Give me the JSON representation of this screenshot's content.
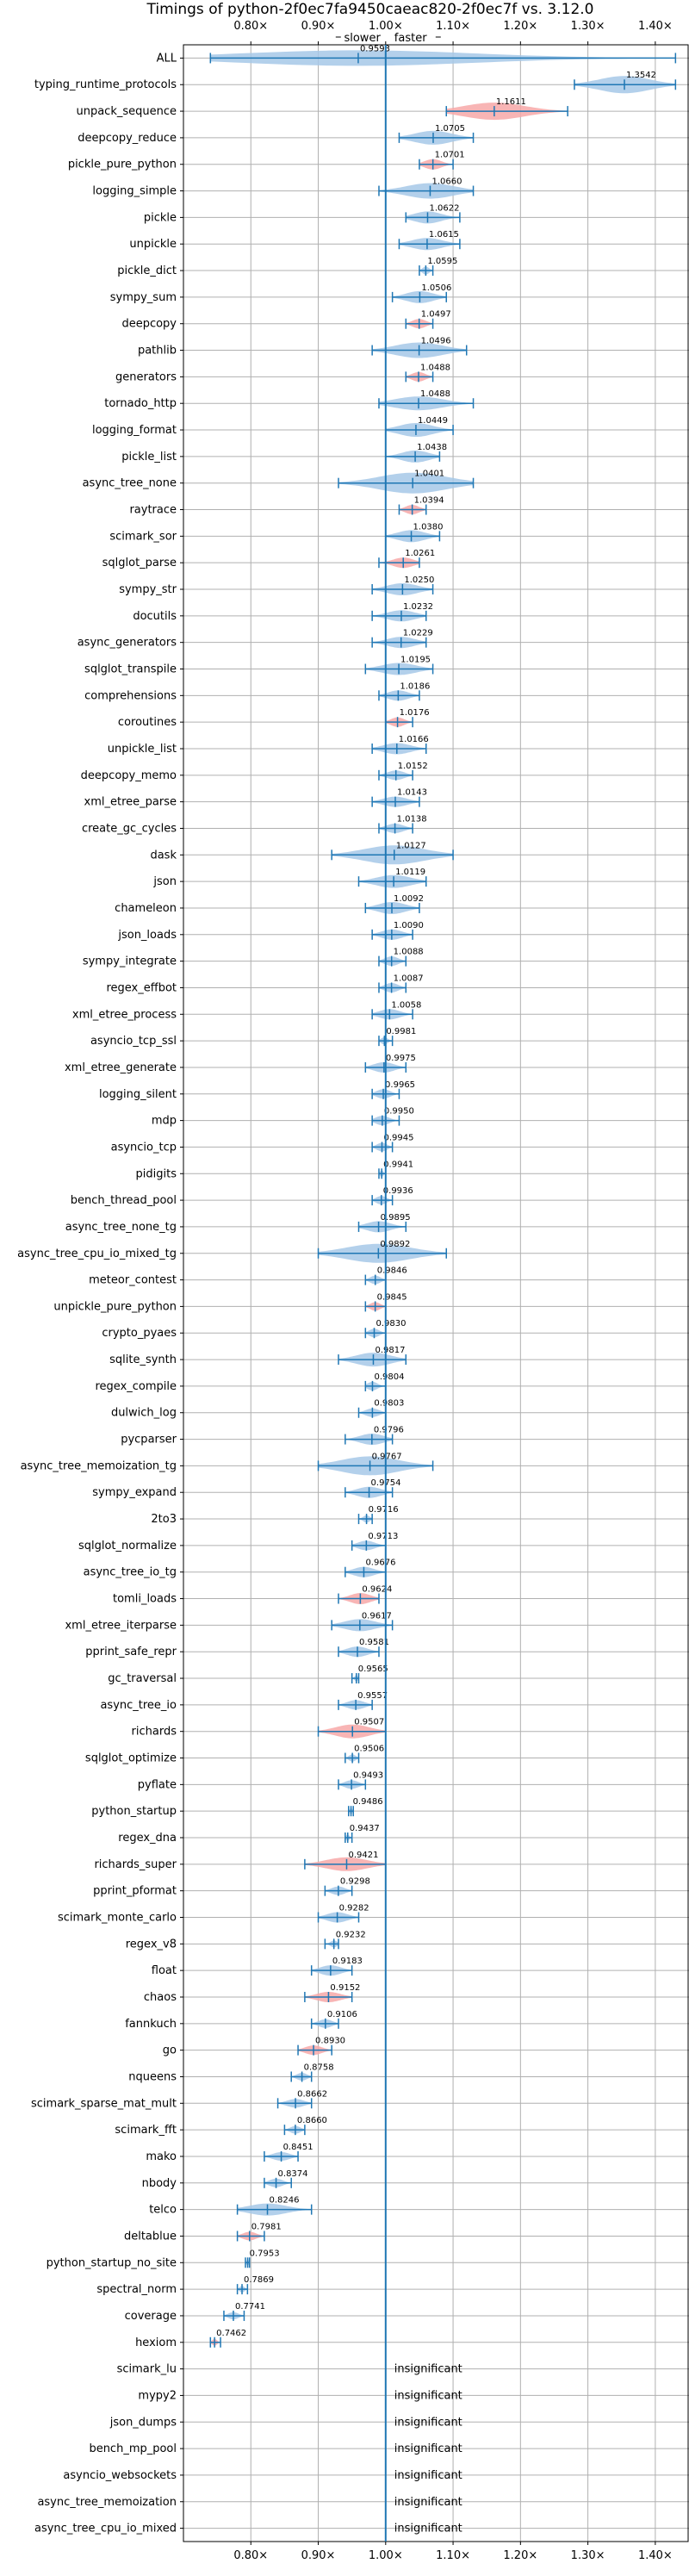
{
  "chart_data": {
    "type": "violin",
    "title": "Timings of python-2f0ec7fa9450caeac820-2f0ec7f vs. 3.12.0",
    "direction_labels": {
      "slower": "slower",
      "faster": "faster"
    },
    "x_ticks": [
      0.8,
      0.9,
      1.0,
      1.1,
      1.2,
      1.3,
      1.4
    ],
    "x_tick_labels": [
      "0.80×",
      "0.90×",
      "1.00×",
      "1.10×",
      "1.20×",
      "1.30×",
      "1.40×"
    ],
    "xlim": [
      0.7,
      1.45
    ],
    "reference_line": 1.0,
    "grid": true,
    "insignificant_text": "insignificant",
    "colors": {
      "normal": "#a6c8e8",
      "highlight": "#f7a8a8",
      "line": "#1f77b4",
      "grid": "#b0b0b0"
    },
    "rows": [
      {
        "name": "ALL",
        "value": 0.9593,
        "label": "0.9593",
        "lo": 0.74,
        "hi": 1.43,
        "w": 0.06,
        "hl": false
      },
      {
        "name": "typing_runtime_protocols",
        "value": 1.3542,
        "label": "1.3542",
        "lo": 1.28,
        "hi": 1.43,
        "w": 0.07,
        "hl": false
      },
      {
        "name": "unpack_sequence",
        "value": 1.1611,
        "label": "1.1611",
        "lo": 1.09,
        "hi": 1.27,
        "w": 0.07,
        "hl": true
      },
      {
        "name": "deepcopy_reduce",
        "value": 1.0705,
        "label": "1.0705",
        "lo": 1.02,
        "hi": 1.13,
        "w": 0.05,
        "hl": false
      },
      {
        "name": "pickle_pure_python",
        "value": 1.0701,
        "label": "1.0701",
        "lo": 1.05,
        "hi": 1.1,
        "w": 0.03,
        "hl": true
      },
      {
        "name": "logging_simple",
        "value": 1.066,
        "label": "1.0660",
        "lo": 0.99,
        "hi": 1.13,
        "w": 0.06,
        "hl": false
      },
      {
        "name": "pickle",
        "value": 1.0622,
        "label": "1.0622",
        "lo": 1.03,
        "hi": 1.11,
        "w": 0.04,
        "hl": false
      },
      {
        "name": "unpickle",
        "value": 1.0615,
        "label": "1.0615",
        "lo": 1.02,
        "hi": 1.11,
        "w": 0.04,
        "hl": false
      },
      {
        "name": "pickle_dict",
        "value": 1.0595,
        "label": "1.0595",
        "lo": 1.05,
        "hi": 1.07,
        "w": 0.015,
        "hl": false
      },
      {
        "name": "sympy_sum",
        "value": 1.0506,
        "label": "1.0506",
        "lo": 1.01,
        "hi": 1.09,
        "w": 0.04,
        "hl": false
      },
      {
        "name": "deepcopy",
        "value": 1.0497,
        "label": "1.0497",
        "lo": 1.03,
        "hi": 1.07,
        "w": 0.025,
        "hl": true
      },
      {
        "name": "pathlib",
        "value": 1.0496,
        "label": "1.0496",
        "lo": 0.98,
        "hi": 1.12,
        "w": 0.06,
        "hl": false
      },
      {
        "name": "generators",
        "value": 1.0488,
        "label": "1.0488",
        "lo": 1.03,
        "hi": 1.07,
        "w": 0.025,
        "hl": true
      },
      {
        "name": "tornado_http",
        "value": 1.0488,
        "label": "1.0488",
        "lo": 0.99,
        "hi": 1.13,
        "w": 0.05,
        "hl": false
      },
      {
        "name": "logging_format",
        "value": 1.0449,
        "label": "1.0449",
        "lo": 1.0,
        "hi": 1.1,
        "w": 0.05,
        "hl": false
      },
      {
        "name": "pickle_list",
        "value": 1.0438,
        "label": "1.0438",
        "lo": 1.0,
        "hi": 1.08,
        "w": 0.04,
        "hl": false
      },
      {
        "name": "async_tree_none",
        "value": 1.0401,
        "label": "1.0401",
        "lo": 0.93,
        "hi": 1.13,
        "w": 0.09,
        "hl": false
      },
      {
        "name": "raytrace",
        "value": 1.0394,
        "label": "1.0394",
        "lo": 1.02,
        "hi": 1.06,
        "w": 0.025,
        "hl": true
      },
      {
        "name": "scimark_sor",
        "value": 1.038,
        "label": "1.0380",
        "lo": 1.0,
        "hi": 1.08,
        "w": 0.04,
        "hl": false
      },
      {
        "name": "sqlglot_parse",
        "value": 1.0261,
        "label": "1.0261",
        "lo": 0.99,
        "hi": 1.05,
        "w": 0.03,
        "hl": true
      },
      {
        "name": "sympy_str",
        "value": 1.025,
        "label": "1.0250",
        "lo": 0.98,
        "hi": 1.07,
        "w": 0.04,
        "hl": false
      },
      {
        "name": "docutils",
        "value": 1.0232,
        "label": "1.0232",
        "lo": 0.98,
        "hi": 1.06,
        "w": 0.035,
        "hl": false
      },
      {
        "name": "async_generators",
        "value": 1.0229,
        "label": "1.0229",
        "lo": 0.98,
        "hi": 1.06,
        "w": 0.035,
        "hl": false
      },
      {
        "name": "sqlglot_transpile",
        "value": 1.0195,
        "label": "1.0195",
        "lo": 0.97,
        "hi": 1.07,
        "w": 0.04,
        "hl": false
      },
      {
        "name": "comprehensions",
        "value": 1.0186,
        "label": "1.0186",
        "lo": 0.99,
        "hi": 1.05,
        "w": 0.03,
        "hl": false
      },
      {
        "name": "coroutines",
        "value": 1.0176,
        "label": "1.0176",
        "lo": 1.0,
        "hi": 1.04,
        "w": 0.025,
        "hl": true
      },
      {
        "name": "unpickle_list",
        "value": 1.0166,
        "label": "1.0166",
        "lo": 0.98,
        "hi": 1.06,
        "w": 0.035,
        "hl": false
      },
      {
        "name": "deepcopy_memo",
        "value": 1.0152,
        "label": "1.0152",
        "lo": 0.99,
        "hi": 1.04,
        "w": 0.025,
        "hl": false
      },
      {
        "name": "xml_etree_parse",
        "value": 1.0143,
        "label": "1.0143",
        "lo": 0.98,
        "hi": 1.05,
        "w": 0.03,
        "hl": false
      },
      {
        "name": "create_gc_cycles",
        "value": 1.0138,
        "label": "1.0138",
        "lo": 0.99,
        "hi": 1.04,
        "w": 0.025,
        "hl": false
      },
      {
        "name": "dask",
        "value": 1.0127,
        "label": "1.0127",
        "lo": 0.92,
        "hi": 1.1,
        "w": 0.08,
        "hl": false
      },
      {
        "name": "json",
        "value": 1.0119,
        "label": "1.0119",
        "lo": 0.96,
        "hi": 1.06,
        "w": 0.045,
        "hl": false
      },
      {
        "name": "chameleon",
        "value": 1.0092,
        "label": "1.0092",
        "lo": 0.97,
        "hi": 1.05,
        "w": 0.04,
        "hl": false
      },
      {
        "name": "json_loads",
        "value": 1.009,
        "label": "1.0090",
        "lo": 0.98,
        "hi": 1.04,
        "w": 0.03,
        "hl": false
      },
      {
        "name": "sympy_integrate",
        "value": 1.0088,
        "label": "1.0088",
        "lo": 0.99,
        "hi": 1.03,
        "w": 0.025,
        "hl": false
      },
      {
        "name": "regex_effbot",
        "value": 1.0087,
        "label": "1.0087",
        "lo": 0.99,
        "hi": 1.03,
        "w": 0.025,
        "hl": false
      },
      {
        "name": "xml_etree_process",
        "value": 1.0058,
        "label": "1.0058",
        "lo": 0.98,
        "hi": 1.04,
        "w": 0.03,
        "hl": false
      },
      {
        "name": "asyncio_tcp_ssl",
        "value": 0.9981,
        "label": "0.9981",
        "lo": 0.99,
        "hi": 1.01,
        "w": 0.012,
        "hl": false
      },
      {
        "name": "xml_etree_generate",
        "value": 0.9975,
        "label": "0.9975",
        "lo": 0.97,
        "hi": 1.03,
        "w": 0.03,
        "hl": false
      },
      {
        "name": "logging_silent",
        "value": 0.9965,
        "label": "0.9965",
        "lo": 0.98,
        "hi": 1.02,
        "w": 0.025,
        "hl": false
      },
      {
        "name": "mdp",
        "value": 0.995,
        "label": "0.9950",
        "lo": 0.98,
        "hi": 1.02,
        "w": 0.025,
        "hl": false
      },
      {
        "name": "asyncio_tcp",
        "value": 0.9945,
        "label": "0.9945",
        "lo": 0.98,
        "hi": 1.01,
        "w": 0.02,
        "hl": false
      },
      {
        "name": "pidigits",
        "value": 0.9941,
        "label": "0.9941",
        "lo": 0.99,
        "hi": 1.0,
        "w": 0.008,
        "hl": false
      },
      {
        "name": "bench_thread_pool",
        "value": 0.9936,
        "label": "0.9936",
        "lo": 0.98,
        "hi": 1.01,
        "w": 0.02,
        "hl": false
      },
      {
        "name": "async_tree_none_tg",
        "value": 0.9895,
        "label": "0.9895",
        "lo": 0.96,
        "hi": 1.03,
        "w": 0.035,
        "hl": false
      },
      {
        "name": "async_tree_cpu_io_mixed_tg",
        "value": 0.9892,
        "label": "0.9892",
        "lo": 0.9,
        "hi": 1.09,
        "w": 0.08,
        "hl": false
      },
      {
        "name": "meteor_contest",
        "value": 0.9846,
        "label": "0.9846",
        "lo": 0.97,
        "hi": 1.0,
        "w": 0.02,
        "hl": false
      },
      {
        "name": "unpickle_pure_python",
        "value": 0.9845,
        "label": "0.9845",
        "lo": 0.97,
        "hi": 1.0,
        "w": 0.02,
        "hl": true
      },
      {
        "name": "crypto_pyaes",
        "value": 0.983,
        "label": "0.9830",
        "lo": 0.97,
        "hi": 1.0,
        "w": 0.02,
        "hl": false
      },
      {
        "name": "sqlite_synth",
        "value": 0.9817,
        "label": "0.9817",
        "lo": 0.93,
        "hi": 1.03,
        "w": 0.05,
        "hl": false
      },
      {
        "name": "regex_compile",
        "value": 0.9804,
        "label": "0.9804",
        "lo": 0.97,
        "hi": 1.0,
        "w": 0.02,
        "hl": false
      },
      {
        "name": "dulwich_log",
        "value": 0.9803,
        "label": "0.9803",
        "lo": 0.96,
        "hi": 1.0,
        "w": 0.02,
        "hl": false
      },
      {
        "name": "pycparser",
        "value": 0.9796,
        "label": "0.9796",
        "lo": 0.94,
        "hi": 1.01,
        "w": 0.035,
        "hl": false
      },
      {
        "name": "async_tree_memoization_tg",
        "value": 0.9767,
        "label": "0.9767",
        "lo": 0.9,
        "hi": 1.07,
        "w": 0.08,
        "hl": false
      },
      {
        "name": "sympy_expand",
        "value": 0.9754,
        "label": "0.9754",
        "lo": 0.94,
        "hi": 1.01,
        "w": 0.035,
        "hl": false
      },
      {
        "name": "2to3",
        "value": 0.9716,
        "label": "0.9716",
        "lo": 0.96,
        "hi": 0.98,
        "w": 0.012,
        "hl": false
      },
      {
        "name": "sqlglot_normalize",
        "value": 0.9713,
        "label": "0.9713",
        "lo": 0.95,
        "hi": 1.0,
        "w": 0.025,
        "hl": false
      },
      {
        "name": "async_tree_io_tg",
        "value": 0.9676,
        "label": "0.9676",
        "lo": 0.94,
        "hi": 1.0,
        "w": 0.03,
        "hl": false
      },
      {
        "name": "tomli_loads",
        "value": 0.9624,
        "label": "0.9624",
        "lo": 0.93,
        "hi": 0.99,
        "w": 0.035,
        "hl": true
      },
      {
        "name": "xml_etree_iterparse",
        "value": 0.9617,
        "label": "0.9617",
        "lo": 0.92,
        "hi": 1.01,
        "w": 0.04,
        "hl": false
      },
      {
        "name": "pprint_safe_repr",
        "value": 0.9581,
        "label": "0.9581",
        "lo": 0.93,
        "hi": 0.99,
        "w": 0.03,
        "hl": false
      },
      {
        "name": "gc_traversal",
        "value": 0.9565,
        "label": "0.9565",
        "lo": 0.95,
        "hi": 0.96,
        "w": 0.008,
        "hl": false
      },
      {
        "name": "async_tree_io",
        "value": 0.9557,
        "label": "0.9557",
        "lo": 0.93,
        "hi": 0.98,
        "w": 0.025,
        "hl": false
      },
      {
        "name": "richards",
        "value": 0.9507,
        "label": "0.9507",
        "lo": 0.9,
        "hi": 1.0,
        "w": 0.05,
        "hl": true
      },
      {
        "name": "sqlglot_optimize",
        "value": 0.9506,
        "label": "0.9506",
        "lo": 0.94,
        "hi": 0.96,
        "w": 0.012,
        "hl": false
      },
      {
        "name": "pyflate",
        "value": 0.9493,
        "label": "0.9493",
        "lo": 0.93,
        "hi": 0.97,
        "w": 0.02,
        "hl": false
      },
      {
        "name": "python_startup",
        "value": 0.9486,
        "label": "0.9486",
        "lo": 0.945,
        "hi": 0.952,
        "w": 0.005,
        "hl": false
      },
      {
        "name": "regex_dna",
        "value": 0.9437,
        "label": "0.9437",
        "lo": 0.94,
        "hi": 0.95,
        "w": 0.008,
        "hl": false
      },
      {
        "name": "richards_super",
        "value": 0.9421,
        "label": "0.9421",
        "lo": 0.88,
        "hi": 1.0,
        "w": 0.05,
        "hl": true
      },
      {
        "name": "pprint_pformat",
        "value": 0.9298,
        "label": "0.9298",
        "lo": 0.91,
        "hi": 0.95,
        "w": 0.02,
        "hl": false
      },
      {
        "name": "scimark_monte_carlo",
        "value": 0.9282,
        "label": "0.9282",
        "lo": 0.9,
        "hi": 0.96,
        "w": 0.03,
        "hl": false
      },
      {
        "name": "regex_v8",
        "value": 0.9232,
        "label": "0.9232",
        "lo": 0.91,
        "hi": 0.93,
        "w": 0.01,
        "hl": false
      },
      {
        "name": "float",
        "value": 0.9183,
        "label": "0.9183",
        "lo": 0.89,
        "hi": 0.95,
        "w": 0.03,
        "hl": false
      },
      {
        "name": "chaos",
        "value": 0.9152,
        "label": "0.9152",
        "lo": 0.88,
        "hi": 0.95,
        "w": 0.03,
        "hl": true
      },
      {
        "name": "fannkuch",
        "value": 0.9106,
        "label": "0.9106",
        "lo": 0.89,
        "hi": 0.93,
        "w": 0.02,
        "hl": false
      },
      {
        "name": "go",
        "value": 0.893,
        "label": "0.8930",
        "lo": 0.87,
        "hi": 0.92,
        "w": 0.025,
        "hl": true
      },
      {
        "name": "nqueens",
        "value": 0.8758,
        "label": "0.8758",
        "lo": 0.86,
        "hi": 0.89,
        "w": 0.015,
        "hl": false
      },
      {
        "name": "scimark_sparse_mat_mult",
        "value": 0.8662,
        "label": "0.8662",
        "lo": 0.84,
        "hi": 0.89,
        "w": 0.02,
        "hl": false
      },
      {
        "name": "scimark_fft",
        "value": 0.866,
        "label": "0.8660",
        "lo": 0.85,
        "hi": 0.88,
        "w": 0.015,
        "hl": false
      },
      {
        "name": "mako",
        "value": 0.8451,
        "label": "0.8451",
        "lo": 0.82,
        "hi": 0.87,
        "w": 0.02,
        "hl": false
      },
      {
        "name": "nbody",
        "value": 0.8374,
        "label": "0.8374",
        "lo": 0.82,
        "hi": 0.86,
        "w": 0.02,
        "hl": false
      },
      {
        "name": "telco",
        "value": 0.8246,
        "label": "0.8246",
        "lo": 0.78,
        "hi": 0.89,
        "w": 0.04,
        "hl": false
      },
      {
        "name": "deltablue",
        "value": 0.7981,
        "label": "0.7981",
        "lo": 0.78,
        "hi": 0.82,
        "w": 0.02,
        "hl": true
      },
      {
        "name": "python_startup_no_site",
        "value": 0.7953,
        "label": "0.7953",
        "lo": 0.792,
        "hi": 0.798,
        "w": 0.004,
        "hl": false
      },
      {
        "name": "spectral_norm",
        "value": 0.7869,
        "label": "0.7869",
        "lo": 0.78,
        "hi": 0.795,
        "w": 0.008,
        "hl": false
      },
      {
        "name": "coverage",
        "value": 0.7741,
        "label": "0.7741",
        "lo": 0.76,
        "hi": 0.79,
        "w": 0.012,
        "hl": false
      },
      {
        "name": "hexiom",
        "value": 0.7462,
        "label": "0.7462",
        "lo": 0.74,
        "hi": 0.755,
        "w": 0.008,
        "hl": true
      },
      {
        "name": "scimark_lu",
        "insignificant": true
      },
      {
        "name": "mypy2",
        "insignificant": true
      },
      {
        "name": "json_dumps",
        "insignificant": true
      },
      {
        "name": "bench_mp_pool",
        "insignificant": true
      },
      {
        "name": "asyncio_websockets",
        "insignificant": true
      },
      {
        "name": "async_tree_memoization",
        "insignificant": true
      },
      {
        "name": "async_tree_cpu_io_mixed",
        "insignificant": true
      }
    ]
  }
}
